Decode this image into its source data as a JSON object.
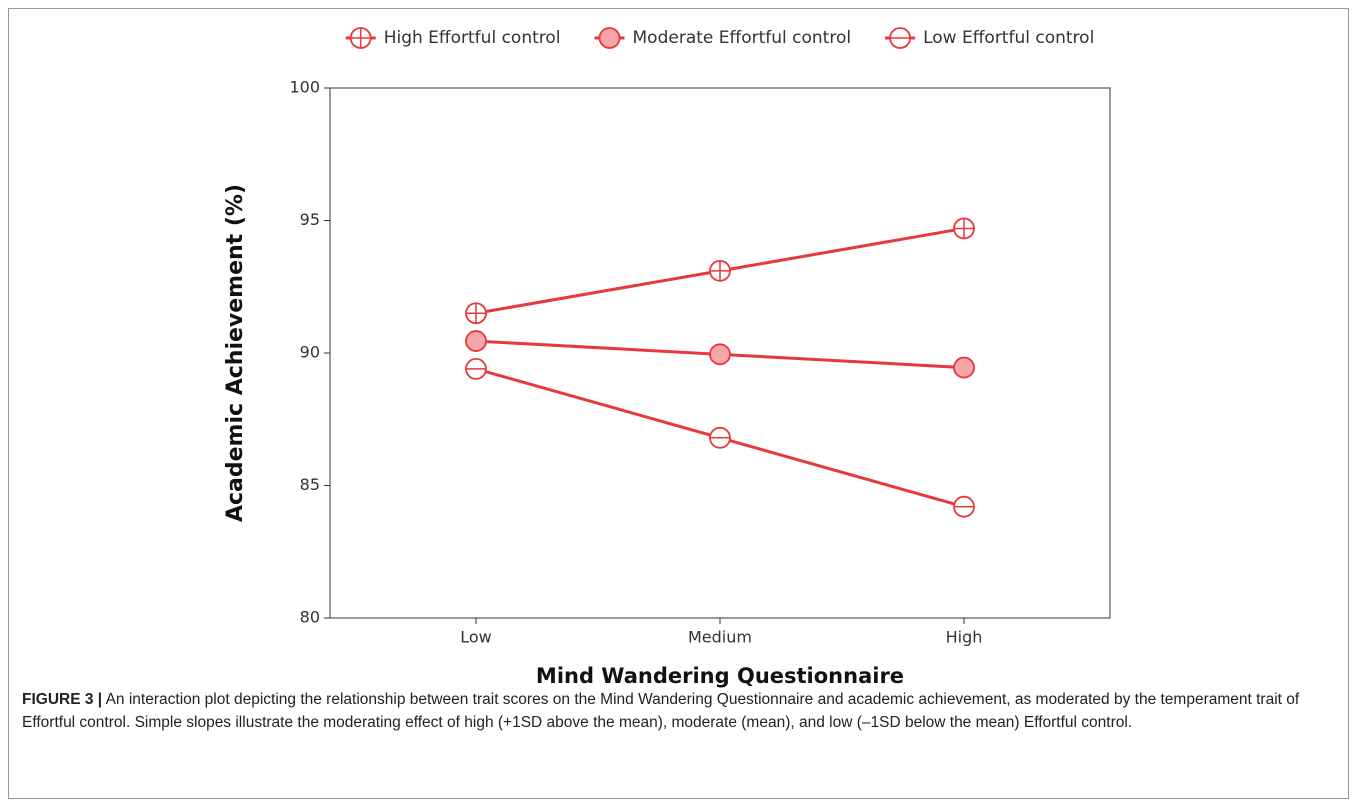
{
  "chart_data": {
    "type": "line",
    "categories": [
      "Low",
      "Medium",
      "High"
    ],
    "series": [
      {
        "name": "High Effortful control",
        "color": "#e8383d",
        "marker": "circle-cross",
        "values": [
          91.5,
          93.1,
          94.7
        ]
      },
      {
        "name": "Moderate Effortful control",
        "color": "#e8383d",
        "fill": "#f4a6a8",
        "marker": "circle-filled",
        "values": [
          90.45,
          89.95,
          89.45
        ]
      },
      {
        "name": "Low Effortful control",
        "color": "#e8383d",
        "marker": "circle-minus",
        "values": [
          89.4,
          86.8,
          84.2
        ]
      }
    ],
    "ylim": [
      80,
      100
    ],
    "yticks": [
      80,
      85,
      90,
      95,
      100
    ],
    "x_label": "Mind Wandering Questionnaire",
    "y_label": "Academic Achievement (%)",
    "legend": "top"
  },
  "caption": {
    "label": "FIGURE 3 |",
    "text": "An interaction plot depicting the relationship between trait scores on the Mind Wandering Questionnaire and academic achievement, as moderated by the temperament trait of Effortful control. Simple slopes illustrate the moderating effect of high (+1SD above the mean), moderate (mean), and low (–1SD below the mean) Effortful control."
  }
}
